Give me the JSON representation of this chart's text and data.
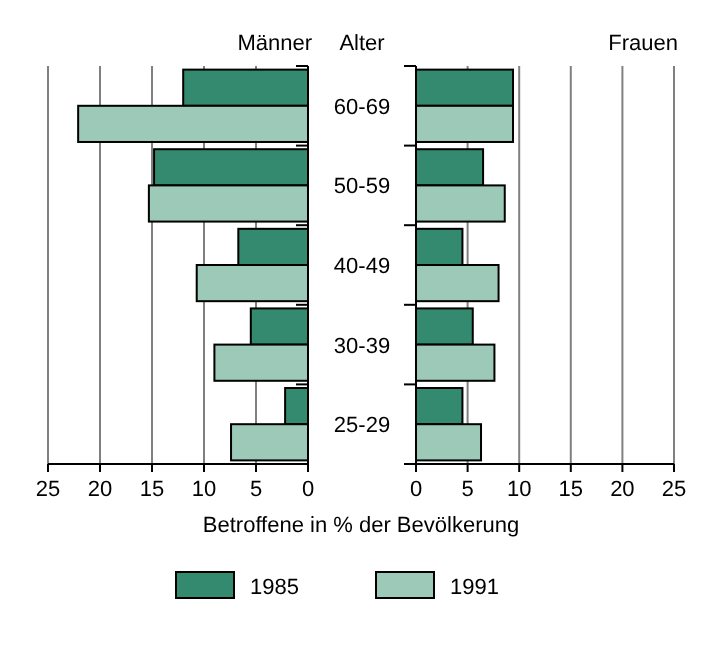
{
  "chart_data": [
    {
      "type": "bar",
      "orientation": "horizontal",
      "title": "Männer",
      "ylabel": "Alter",
      "xlabel": "Betroffene in % der Bevölkerung",
      "categories": [
        "60-69",
        "50-59",
        "40-49",
        "30-39",
        "25-29"
      ],
      "xlim": [
        25,
        0
      ],
      "xticks": [
        25,
        20,
        15,
        10,
        5,
        0
      ],
      "grid": "x",
      "legend": "bottom",
      "series": [
        {
          "name": "1985",
          "color": "#348a6e",
          "values": [
            12,
            14.8,
            6.7,
            5.5,
            2.2
          ]
        },
        {
          "name": "1991",
          "color": "#9dc9b8",
          "values": [
            22.1,
            15.3,
            10.7,
            9,
            7.4
          ]
        }
      ]
    },
    {
      "type": "bar",
      "orientation": "horizontal",
      "title": "Frauen",
      "categories": [
        null,
        null,
        null,
        null,
        null
      ],
      "xlim": [
        0,
        25
      ],
      "xticks": [
        0,
        5,
        10,
        15,
        20,
        25
      ],
      "grid": "x",
      "series": [
        {
          "color": "#348a6e",
          "values": [
            9.4,
            6.5,
            4.5,
            5.5,
            4.5
          ]
        },
        {
          "color": "#9dc9b8",
          "values": [
            9.4,
            8.6,
            8,
            7.6,
            6.3
          ]
        }
      ]
    }
  ]
}
